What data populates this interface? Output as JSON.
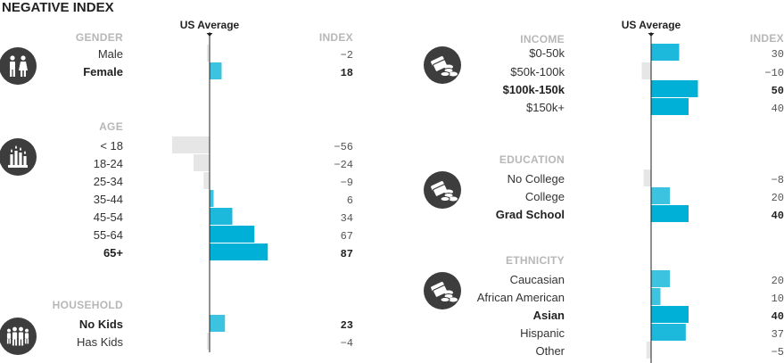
{
  "title": "NEGATIVE INDEX",
  "us_average_label": "US Average",
  "index_label": "INDEX",
  "colors": {
    "positive_max": "#00b0d6",
    "positive_mid": "#1cb9dc",
    "positive_low": "#3cc3e0",
    "negative": "#e6e6e6",
    "axis": "#222222",
    "section_label": "#b7b7b7",
    "icon_bg": "#3d3d3d"
  },
  "chart_data": [
    {
      "type": "bar",
      "orientation": "horizontal",
      "title": "NEGATIVE INDEX",
      "axis_label": "US Average",
      "value_label": "INDEX",
      "xlim": [
        -60,
        100
      ],
      "groups": [
        {
          "name": "GENDER",
          "icon": "family-icon",
          "categories": [
            "Male",
            "Female"
          ],
          "values": [
            -2,
            18
          ],
          "highlight": [
            false,
            true
          ]
        },
        {
          "name": "AGE",
          "icon": "candles-icon",
          "categories": [
            "< 18",
            "18-24",
            "25-34",
            "35-44",
            "45-54",
            "55-64",
            "65+"
          ],
          "values": [
            -56,
            -24,
            -9,
            6,
            34,
            67,
            87
          ],
          "highlight": [
            false,
            false,
            false,
            false,
            false,
            false,
            true
          ]
        },
        {
          "name": "HOUSEHOLD",
          "icon": "household-icon",
          "categories": [
            "No Kids",
            "Has Kids"
          ],
          "values": [
            23,
            -4
          ],
          "highlight": [
            true,
            false
          ]
        }
      ]
    },
    {
      "type": "bar",
      "orientation": "horizontal",
      "axis_label": "US Average",
      "value_label": "INDEX",
      "xlim": [
        -60,
        100
      ],
      "groups": [
        {
          "name": "INCOME",
          "icon": "money-icon",
          "categories": [
            "$0-50k",
            "$50k-100k",
            "$100k-150k",
            "$150k+"
          ],
          "values": [
            30,
            -10,
            50,
            40
          ],
          "highlight": [
            false,
            false,
            true,
            false
          ]
        },
        {
          "name": "EDUCATION",
          "icon": "money-icon",
          "categories": [
            "No College",
            "College",
            "Grad School"
          ],
          "values": [
            -8,
            20,
            40
          ],
          "highlight": [
            false,
            false,
            true
          ]
        },
        {
          "name": "ETHNICITY",
          "icon": "money-icon",
          "categories": [
            "Caucasian",
            "African American",
            "Asian",
            "Hispanic",
            "Other"
          ],
          "values": [
            20,
            10,
            40,
            37,
            -5
          ],
          "highlight": [
            false,
            false,
            true,
            false,
            false
          ]
        }
      ]
    }
  ]
}
